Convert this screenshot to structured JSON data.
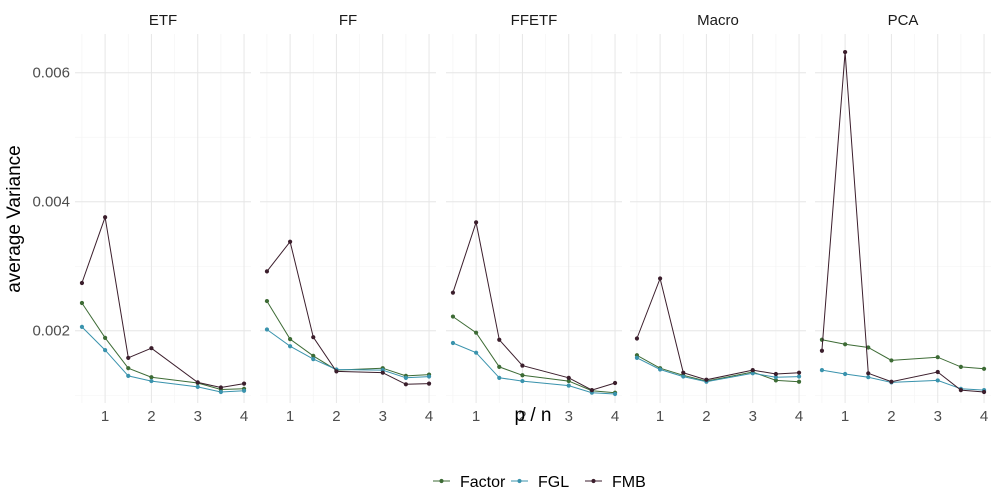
{
  "chart_data": {
    "type": "line",
    "facets": [
      "ETF",
      "FF",
      "FFETF",
      "Macro",
      "PCA"
    ],
    "x": [
      0.5,
      1,
      1.5,
      2,
      3,
      3.5,
      4
    ],
    "xlabel": "p / n",
    "ylabel": "average Variance",
    "xlim": [
      0.35,
      4.15
    ],
    "ylim": [
      0.00088,
      0.0066
    ],
    "x_ticks": [
      1,
      2,
      3,
      4
    ],
    "x_tick_labels": [
      "1",
      "2",
      "3",
      "4"
    ],
    "y_ticks": [
      0.002,
      0.004,
      0.006
    ],
    "y_tick_labels": [
      "0.002",
      "0.004",
      "0.006"
    ],
    "grid": true,
    "legend_position": "bottom",
    "series_names": [
      "Factor",
      "FGL",
      "FMB"
    ],
    "series_colors": {
      "Factor": "#3d6b35",
      "FGL": "#3a93ad",
      "FMB": "#3b1e2c"
    },
    "panels": [
      {
        "facet": "ETF",
        "series": [
          {
            "name": "Factor",
            "values": [
              0.00243,
              0.00189,
              0.00142,
              0.00128,
              0.00119,
              0.00109,
              0.0011
            ]
          },
          {
            "name": "FGL",
            "values": [
              0.00206,
              0.0017,
              0.0013,
              0.00122,
              0.00113,
              0.00105,
              0.00107
            ]
          },
          {
            "name": "FMB",
            "values": [
              0.00274,
              0.00376,
              0.00158,
              0.00173,
              0.0012,
              0.00112,
              0.00118
            ]
          }
        ]
      },
      {
        "facet": "FF",
        "series": [
          {
            "name": "Factor",
            "values": [
              0.00246,
              0.00187,
              0.00161,
              0.00139,
              0.00142,
              0.0013,
              0.00132
            ]
          },
          {
            "name": "FGL",
            "values": [
              0.00202,
              0.00176,
              0.00156,
              0.0014,
              0.00139,
              0.00127,
              0.00129
            ]
          },
          {
            "name": "FMB",
            "values": [
              0.00292,
              0.00338,
              0.0019,
              0.00137,
              0.00135,
              0.00117,
              0.00118
            ]
          }
        ]
      },
      {
        "facet": "FFETF",
        "series": [
          {
            "name": "Factor",
            "values": [
              0.00222,
              0.00197,
              0.00144,
              0.00131,
              0.00122,
              0.00107,
              0.00104
            ]
          },
          {
            "name": "FGL",
            "values": [
              0.00181,
              0.00166,
              0.00127,
              0.00122,
              0.00115,
              0.00104,
              0.00102
            ]
          },
          {
            "name": "FMB",
            "values": [
              0.00259,
              0.00368,
              0.00186,
              0.00146,
              0.00127,
              0.00108,
              0.00119
            ]
          }
        ]
      },
      {
        "facet": "Macro",
        "series": [
          {
            "name": "Factor",
            "values": [
              0.00162,
              0.00142,
              0.00131,
              0.00122,
              0.00136,
              0.00123,
              0.00121
            ]
          },
          {
            "name": "FGL",
            "values": [
              0.00158,
              0.0014,
              0.00129,
              0.00121,
              0.00134,
              0.00128,
              0.00129
            ]
          },
          {
            "name": "FMB",
            "values": [
              0.00188,
              0.00281,
              0.00135,
              0.00124,
              0.00139,
              0.00133,
              0.00135
            ]
          }
        ]
      },
      {
        "facet": "PCA",
        "series": [
          {
            "name": "Factor",
            "values": [
              0.00186,
              0.00179,
              0.00174,
              0.00154,
              0.00159,
              0.00144,
              0.00141
            ]
          },
          {
            "name": "FGL",
            "values": [
              0.00139,
              0.00133,
              0.00128,
              0.0012,
              0.00123,
              0.0011,
              0.00108
            ]
          },
          {
            "name": "FMB",
            "values": [
              0.00169,
              0.00632,
              0.00134,
              0.00121,
              0.00136,
              0.00108,
              0.00105
            ]
          }
        ]
      }
    ]
  }
}
